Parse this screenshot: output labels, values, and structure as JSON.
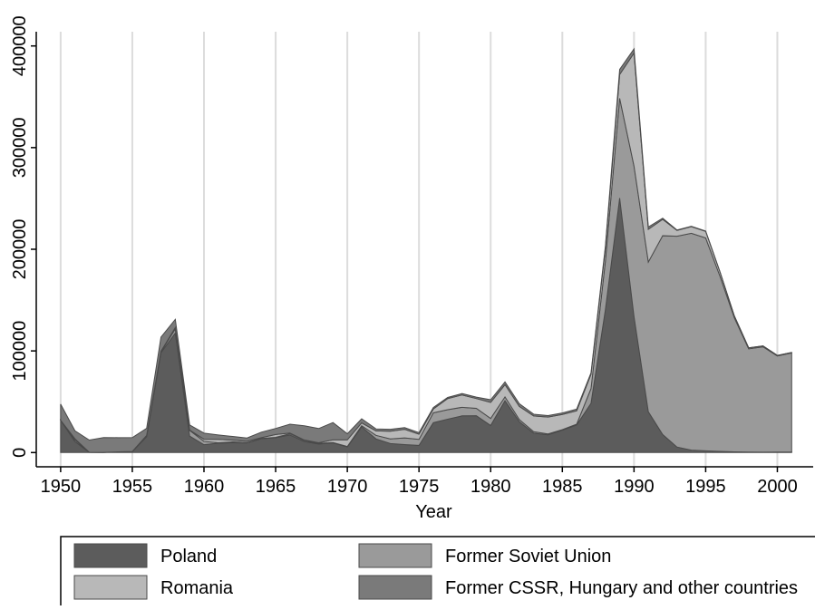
{
  "chart_data": {
    "type": "stacked-area",
    "x_label": "Year",
    "x": [
      1950,
      1951,
      1952,
      1953,
      1954,
      1955,
      1956,
      1957,
      1958,
      1959,
      1960,
      1961,
      1962,
      1963,
      1964,
      1965,
      1966,
      1967,
      1968,
      1969,
      1970,
      1971,
      1972,
      1973,
      1974,
      1975,
      1976,
      1977,
      1978,
      1979,
      1980,
      1981,
      1982,
      1983,
      1984,
      1985,
      1986,
      1987,
      1988,
      1989,
      1990,
      1991,
      1992,
      1993,
      1994,
      1995,
      1996,
      1997,
      1998,
      1999,
      2000,
      2001
    ],
    "series": [
      {
        "name": "Poland",
        "color": "#5c5c5c",
        "values": [
          31761,
          10791,
          194,
          147,
          664,
          860,
          15674,
          98290,
          117550,
          16252,
          7739,
          9303,
          9657,
          9522,
          13611,
          14644,
          17315,
          10856,
          8435,
          9536,
          5624,
          25241,
          13482,
          8903,
          7825,
          7040,
          29364,
          32857,
          36102,
          36274,
          26637,
          50983,
          30355,
          19121,
          17455,
          22075,
          27188,
          48423,
          140226,
          250340,
          133872,
          40129,
          17742,
          5431,
          2440,
          1677,
          1175,
          687,
          488,
          428,
          484,
          623
        ]
      },
      {
        "name": "Former Soviet Union",
        "color": "#9a9a9a",
        "values": [
          13,
          1721,
          63,
          0,
          18,
          154,
          1016,
          923,
          4122,
          5563,
          3272,
          345,
          894,
          209,
          234,
          366,
          1245,
          1092,
          598,
          316,
          342,
          1145,
          3426,
          4494,
          6541,
          5985,
          9704,
          9274,
          8455,
          7226,
          6954,
          3773,
          2071,
          1447,
          913,
          460,
          753,
          14488,
          47572,
          98134,
          147950,
          147320,
          195576,
          207347,
          213214,
          209409,
          172181,
          131895,
          101550,
          103599,
          94558,
          97434
        ]
      },
      {
        "name": "Romania",
        "color": "#b8b8b8",
        "values": [
          13,
          1031,
          26,
          15,
          8,
          44,
          176,
          384,
          1383,
          374,
          2124,
          3303,
          1675,
          1321,
          818,
          2715,
          609,
          440,
          614,
          2675,
          6519,
          2848,
          4374,
          7577,
          8484,
          5077,
          3766,
          10989,
          12120,
          9663,
          15767,
          12031,
          12972,
          15501,
          16553,
          14924,
          13130,
          13990,
          12902,
          23387,
          111150,
          32178,
          16146,
          5811,
          6615,
          6519,
          4284,
          1777,
          1005,
          855,
          547,
          380
        ]
      },
      {
        "name": "Former CSSR, Hungary and other countries",
        "color": "#7a7a7a",
        "values": [
          15806,
          7911,
          12000,
          14600,
          14000,
          13700,
          7000,
          14000,
          8000,
          5000,
          6000,
          4400,
          3600,
          3300,
          5400,
          6000,
          8700,
          14000,
          14000,
          17000,
          6000,
          4000,
          2000,
          1900,
          1700,
          1500,
          1500,
          1100,
          1400,
          1400,
          2600,
          2700,
          2700,
          1700,
          1500,
          1500,
          1700,
          1600,
          1900,
          5100,
          4100,
          2300,
          1100,
          400,
          300,
          300,
          200,
          100,
          0,
          0,
          0,
          0
        ]
      }
    ],
    "xlim": [
      1948.3,
      2002.5
    ],
    "ylim": [
      -14000,
      414000
    ],
    "xticks": [
      1950,
      1955,
      1960,
      1965,
      1970,
      1975,
      1980,
      1985,
      1990,
      1995,
      2000
    ],
    "yticks": [
      0,
      100000,
      200000,
      300000,
      400000
    ],
    "grid": true,
    "legend_position": "bottom"
  }
}
